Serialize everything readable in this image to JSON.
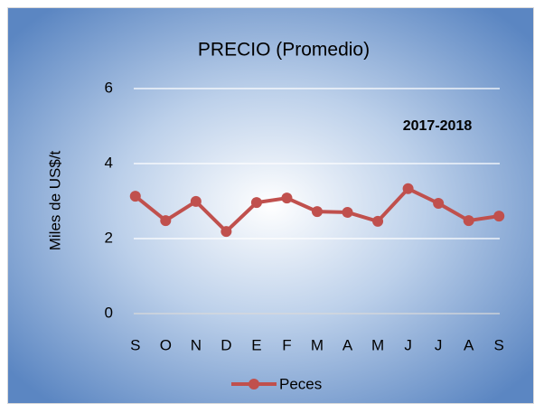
{
  "chart_data": {
    "type": "line",
    "title": "PRECIO (Promedio)",
    "y_label": "Miles de US$/t",
    "annotation": "2017-2018",
    "categories": [
      "S",
      "O",
      "N",
      "D",
      "E",
      "F",
      "M",
      "A",
      "M",
      "J",
      "J",
      "A",
      "S"
    ],
    "series": [
      {
        "name": "Peces",
        "color": "#c0504d",
        "values": [
          3.13,
          2.48,
          2.99,
          2.19,
          2.96,
          3.08,
          2.72,
          2.7,
          2.46,
          3.33,
          2.94,
          2.48,
          2.6
        ]
      }
    ],
    "ylim": [
      0,
      6
    ],
    "yticks": [
      0,
      2,
      4,
      6
    ],
    "grid": true,
    "legend": "bottom"
  }
}
